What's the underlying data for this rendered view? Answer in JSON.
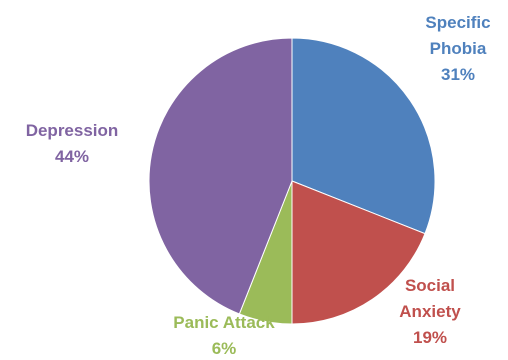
{
  "chart_data": {
    "type": "pie",
    "title": "",
    "legend": "none",
    "slices": [
      {
        "label_lines": [
          "Specific",
          "Phobia"
        ],
        "percent_text": "31%",
        "value": 31,
        "color": "#4F81BD"
      },
      {
        "label_lines": [
          "Social",
          "Anxiety"
        ],
        "percent_text": "19%",
        "value": 19,
        "color": "#C0504D"
      },
      {
        "label_lines": [
          "Panic Attack"
        ],
        "percent_text": "6%",
        "value": 6,
        "color": "#9BBB59"
      },
      {
        "label_lines": [
          "Depression"
        ],
        "percent_text": "44%",
        "value": 44,
        "color": "#8064A2"
      }
    ]
  }
}
